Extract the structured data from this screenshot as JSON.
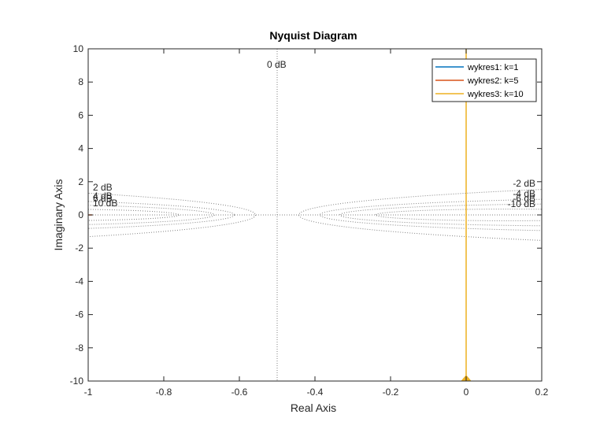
{
  "chart_data": {
    "type": "line",
    "title": "Nyquist Diagram",
    "xlabel": "Real Axis",
    "ylabel": "Imaginary Axis",
    "xlim": [
      -1,
      0.2
    ],
    "ylim": [
      -10,
      10
    ],
    "x_ticks": [
      -1,
      -0.8,
      -0.6,
      -0.4,
      -0.2,
      0,
      0.2
    ],
    "x_tick_labels": [
      "-1",
      "-0.8",
      "-0.6",
      "-0.4",
      "-0.2",
      "0",
      "0.2"
    ],
    "y_ticks": [
      -10,
      -8,
      -6,
      -4,
      -2,
      0,
      2,
      4,
      6,
      8,
      10
    ],
    "y_tick_labels": [
      "-10",
      "-8",
      "-6",
      "-4",
      "-2",
      "0",
      "2",
      "4",
      "6",
      "8",
      "10"
    ],
    "grid": "m-circles (dotted)",
    "legend_position": "top-right",
    "colors": {
      "axis": "#262626",
      "grid": "#808080",
      "series_1": "#0072BD",
      "series_2": "#D95319",
      "series_3": "#EDB120"
    },
    "series": [
      {
        "name": "wykres1: k=1",
        "color": "#0072BD",
        "x": [],
        "y": []
      },
      {
        "name": "wykres2: k=5",
        "color": "#D95319",
        "x": [
          -1.0,
          -0.99
        ],
        "y": [
          0,
          0
        ]
      },
      {
        "name": "wykres3: k=10",
        "color": "#EDB120",
        "x": [
          0,
          0,
          0
        ],
        "y": [
          -10,
          0,
          10
        ]
      }
    ],
    "db_circles_dB": [
      -10,
      -6,
      -4,
      -2,
      0,
      2,
      4,
      6,
      10
    ],
    "db_labels_left": [
      "2 dB",
      "4 dB",
      "6 dB",
      "10 dB"
    ],
    "db_labels_right": [
      "-2 dB",
      "-4 dB",
      "-6 dB",
      "-10 dB"
    ],
    "db_label_zero": "0 dB",
    "markers": [
      {
        "series": "wykres3: k=10",
        "x": 0,
        "y": -10,
        "shape": "triangle-up"
      }
    ]
  }
}
